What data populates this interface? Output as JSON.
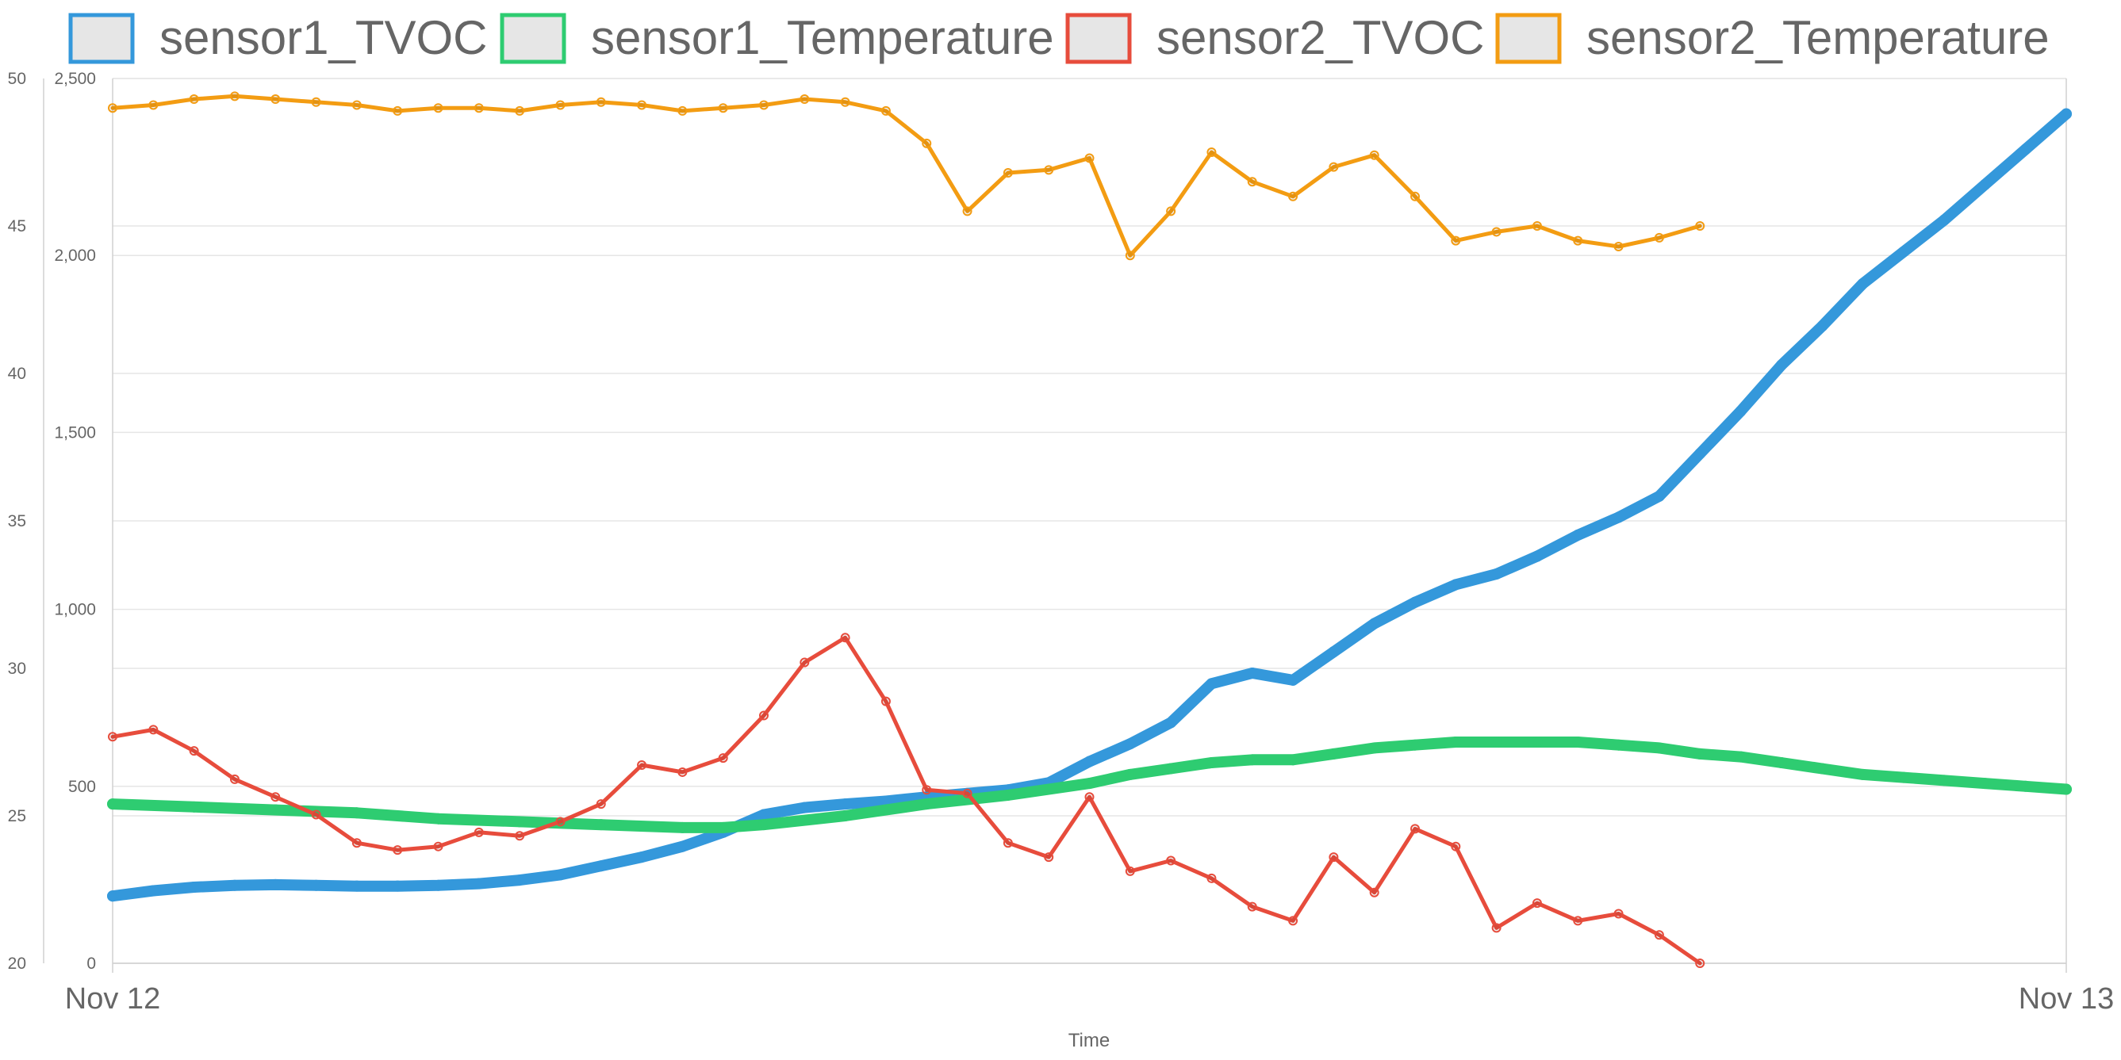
{
  "chart_data": {
    "type": "line",
    "xlabel": "Time",
    "x_ticks": [
      "Nov 12",
      "Nov 13"
    ],
    "x_range": [
      0,
      24
    ],
    "left_axis_temperature": {
      "range": [
        20,
        50
      ],
      "ticks": [
        "20",
        "25",
        "30",
        "35",
        "40",
        "45",
        "50"
      ]
    },
    "right_axis_tvoc": {
      "range": [
        0,
        2500
      ],
      "ticks": [
        "0",
        "500",
        "1,000",
        "1,500",
        "2,000",
        "2,500"
      ]
    },
    "grid": true,
    "legend_position": "top",
    "series": [
      {
        "name": "sensor1_TVOC",
        "axis": "tvoc",
        "color": "#3498db",
        "points": [
          [
            0,
            190
          ],
          [
            0.5,
            205
          ],
          [
            1,
            215
          ],
          [
            1.5,
            220
          ],
          [
            2,
            222
          ],
          [
            2.5,
            220
          ],
          [
            3,
            218
          ],
          [
            3.5,
            218
          ],
          [
            4,
            220
          ],
          [
            4.5,
            225
          ],
          [
            5,
            235
          ],
          [
            5.5,
            250
          ],
          [
            6,
            275
          ],
          [
            6.5,
            300
          ],
          [
            7,
            330
          ],
          [
            7.5,
            370
          ],
          [
            8,
            420
          ],
          [
            8.5,
            440
          ],
          [
            9,
            450
          ],
          [
            9.5,
            458
          ],
          [
            10,
            470
          ],
          [
            10.5,
            480
          ],
          [
            11,
            490
          ],
          [
            11.5,
            510
          ],
          [
            12,
            570
          ],
          [
            12.5,
            620
          ],
          [
            13,
            680
          ],
          [
            13.5,
            790
          ],
          [
            14,
            820
          ],
          [
            14.5,
            800
          ],
          [
            15,
            880
          ],
          [
            15.5,
            960
          ],
          [
            16,
            1020
          ],
          [
            16.5,
            1070
          ],
          [
            17,
            1100
          ],
          [
            17.5,
            1150
          ],
          [
            18,
            1210
          ],
          [
            18.5,
            1260
          ],
          [
            19,
            1320
          ],
          [
            19.5,
            1440
          ],
          [
            20,
            1560
          ],
          [
            20.5,
            1690
          ],
          [
            21,
            1800
          ],
          [
            21.5,
            1920
          ],
          [
            22,
            2010
          ],
          [
            22.5,
            2100
          ],
          [
            23,
            2200
          ],
          [
            23.5,
            2300
          ],
          [
            24,
            2400
          ]
        ]
      },
      {
        "name": "sensor1_Temperature",
        "axis": "temperature",
        "color": "#2ecc71",
        "points": [
          [
            0,
            25.4
          ],
          [
            1,
            25.3
          ],
          [
            2,
            25.2
          ],
          [
            3,
            25.1
          ],
          [
            4,
            24.9
          ],
          [
            5,
            24.8
          ],
          [
            6,
            24.7
          ],
          [
            7,
            24.6
          ],
          [
            7.5,
            24.6
          ],
          [
            8,
            24.7
          ],
          [
            9,
            25.0
          ],
          [
            10,
            25.4
          ],
          [
            11,
            25.7
          ],
          [
            12,
            26.1
          ],
          [
            12.5,
            26.4
          ],
          [
            13,
            26.6
          ],
          [
            13.5,
            26.8
          ],
          [
            14,
            26.9
          ],
          [
            14.5,
            26.9
          ],
          [
            15,
            27.1
          ],
          [
            15.5,
            27.3
          ],
          [
            16,
            27.4
          ],
          [
            16.5,
            27.5
          ],
          [
            17,
            27.5
          ],
          [
            17.5,
            27.5
          ],
          [
            18,
            27.5
          ],
          [
            18.5,
            27.4
          ],
          [
            19,
            27.3
          ],
          [
            19.5,
            27.1
          ],
          [
            20,
            27.0
          ],
          [
            20.5,
            26.8
          ],
          [
            21,
            26.6
          ],
          [
            21.5,
            26.4
          ],
          [
            22,
            26.3
          ],
          [
            22.5,
            26.2
          ],
          [
            23,
            26.1
          ],
          [
            23.5,
            26.0
          ],
          [
            24,
            25.9
          ]
        ]
      },
      {
        "name": "sensor2_TVOC",
        "axis": "tvoc",
        "color": "#e74c3c",
        "points": [
          [
            0,
            640
          ],
          [
            0.5,
            660
          ],
          [
            1,
            600
          ],
          [
            1.5,
            520
          ],
          [
            2,
            470
          ],
          [
            2.5,
            420
          ],
          [
            3,
            340
          ],
          [
            3.5,
            320
          ],
          [
            4,
            330
          ],
          [
            4.5,
            370
          ],
          [
            5,
            360
          ],
          [
            5.5,
            400
          ],
          [
            6,
            450
          ],
          [
            6.5,
            560
          ],
          [
            7,
            540
          ],
          [
            7.5,
            580
          ],
          [
            8,
            700
          ],
          [
            8.5,
            850
          ],
          [
            9,
            920
          ],
          [
            9.5,
            740
          ],
          [
            10,
            490
          ],
          [
            10.5,
            480
          ],
          [
            11,
            340
          ],
          [
            11.5,
            300
          ],
          [
            12,
            470
          ],
          [
            12.5,
            260
          ],
          [
            13,
            290
          ],
          [
            13.5,
            240
          ],
          [
            14,
            160
          ],
          [
            14.5,
            120
          ],
          [
            15,
            300
          ],
          [
            15.5,
            200
          ],
          [
            16,
            380
          ],
          [
            16.5,
            330
          ],
          [
            17,
            100
          ],
          [
            17.5,
            170
          ],
          [
            18,
            120
          ],
          [
            18.5,
            140
          ],
          [
            19,
            80
          ],
          [
            19.5,
            0
          ]
        ]
      },
      {
        "name": "sensor2_Temperature",
        "axis": "temperature",
        "color": "#f39c12",
        "points": [
          [
            0,
            49.0
          ],
          [
            0.5,
            49.1
          ],
          [
            1,
            49.3
          ],
          [
            1.5,
            49.4
          ],
          [
            2,
            49.3
          ],
          [
            2.5,
            49.2
          ],
          [
            3,
            49.1
          ],
          [
            3.5,
            48.9
          ],
          [
            4,
            49.0
          ],
          [
            4.5,
            49.0
          ],
          [
            5,
            48.9
          ],
          [
            5.5,
            49.1
          ],
          [
            6,
            49.2
          ],
          [
            6.5,
            49.1
          ],
          [
            7,
            48.9
          ],
          [
            7.5,
            49.0
          ],
          [
            8,
            49.1
          ],
          [
            8.5,
            49.3
          ],
          [
            9,
            49.2
          ],
          [
            9.5,
            48.9
          ],
          [
            10,
            47.8
          ],
          [
            10.5,
            45.5
          ],
          [
            11,
            46.8
          ],
          [
            11.5,
            46.9
          ],
          [
            12,
            47.3
          ],
          [
            12.5,
            44.0
          ],
          [
            13,
            45.5
          ],
          [
            13.5,
            47.5
          ],
          [
            14,
            46.5
          ],
          [
            14.5,
            46.0
          ],
          [
            15,
            47.0
          ],
          [
            15.5,
            47.4
          ],
          [
            16,
            46.0
          ],
          [
            16.5,
            44.5
          ],
          [
            17,
            44.8
          ],
          [
            17.5,
            45.0
          ],
          [
            18,
            44.5
          ],
          [
            18.5,
            44.3
          ],
          [
            19,
            44.6
          ],
          [
            19.5,
            45.0
          ]
        ]
      }
    ]
  }
}
